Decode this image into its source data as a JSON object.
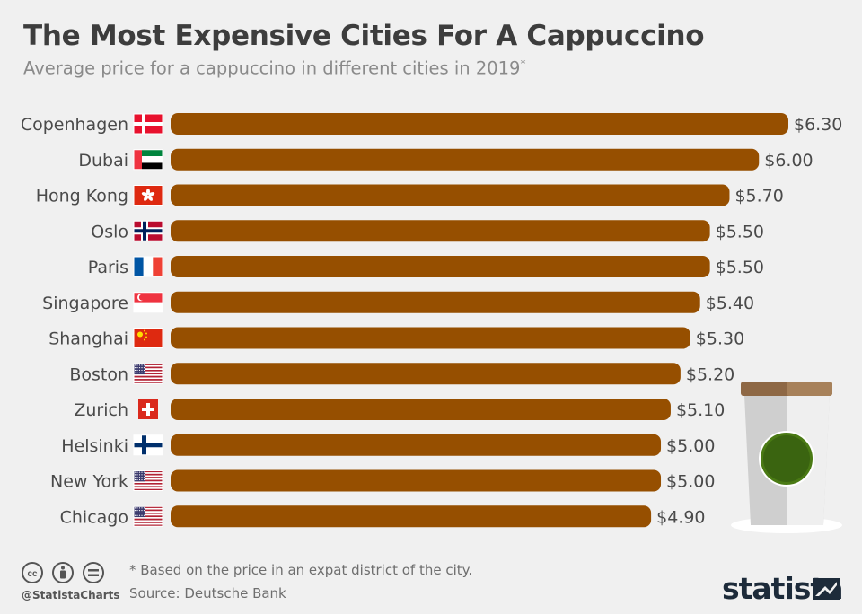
{
  "header": {
    "title": "The Most Expensive Cities For A Cappuccino",
    "subtitle": "Average price for a cappuccino in different cities in 2019",
    "subtitle_mark": "*"
  },
  "chart_data": {
    "type": "bar",
    "orientation": "horizontal",
    "categories": [
      "Copenhagen",
      "Dubai",
      "Hong Kong",
      "Oslo",
      "Paris",
      "Singapore",
      "Shanghai",
      "Boston",
      "Zurich",
      "Helsinki",
      "New York",
      "Chicago"
    ],
    "values": [
      6.3,
      6.0,
      5.7,
      5.5,
      5.5,
      5.4,
      5.3,
      5.2,
      5.1,
      5.0,
      5.0,
      4.9
    ],
    "value_labels": [
      "$6.30",
      "$6.00",
      "$5.70",
      "$5.50",
      "$5.50",
      "$5.40",
      "$5.30",
      "$5.20",
      "$5.10",
      "$5.00",
      "$5.00",
      "$4.90"
    ],
    "flags": [
      "denmark-flag",
      "uae-flag",
      "hong-kong-flag",
      "norway-flag",
      "france-flag",
      "singapore-flag",
      "china-flag",
      "usa-flag",
      "switzerland-flag",
      "finland-flag",
      "usa-flag",
      "usa-flag"
    ],
    "bar_color": "#964f00",
    "xlim": [
      0,
      6.3
    ],
    "grid": false
  },
  "footer": {
    "footnote": "* Based on the price in an expat district of the city.",
    "source": "Source: Deutsche Bank",
    "handle": "@StatistaCharts",
    "brand": "statista"
  },
  "colors": {
    "title": "#3d3d3d",
    "subtitle": "#8a8a8a",
    "background": "#f0f0f0",
    "brand": "#1d2b3a"
  },
  "icons": [
    "cc-icon",
    "attribution-icon",
    "no-derivatives-icon",
    "cappuccino-cup-icon",
    "statista-logo-icon"
  ]
}
